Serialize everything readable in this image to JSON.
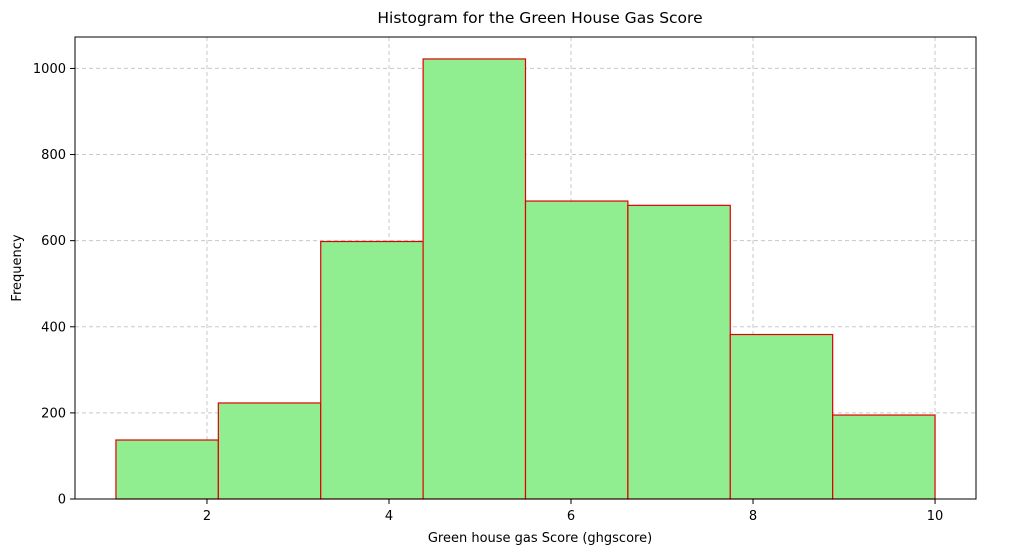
{
  "chart_data": {
    "type": "bar",
    "title": "Histogram for the Green House Gas Score",
    "xlabel": "Green house gas Score (ghgscore)",
    "ylabel": "Frequency",
    "bins": [
      {
        "x0": 1.0,
        "x1": 2.125,
        "value": 137
      },
      {
        "x0": 2.125,
        "x1": 3.25,
        "value": 223
      },
      {
        "x0": 3.25,
        "x1": 4.375,
        "value": 598
      },
      {
        "x0": 4.375,
        "x1": 5.5,
        "value": 1022
      },
      {
        "x0": 5.5,
        "x1": 6.625,
        "value": 692
      },
      {
        "x0": 6.625,
        "x1": 7.75,
        "value": 682
      },
      {
        "x0": 7.75,
        "x1": 8.875,
        "value": 382
      },
      {
        "x0": 8.875,
        "x1": 10.0,
        "value": 195
      }
    ],
    "xlim": [
      0.55,
      10.45
    ],
    "ylim": [
      0,
      1073
    ],
    "xticks": [
      2,
      4,
      6,
      8,
      10
    ],
    "yticks": [
      0,
      200,
      400,
      600,
      800,
      1000
    ],
    "grid": true,
    "colors": {
      "bar_fill": "#90ee90",
      "bar_edge": "#e00000",
      "grid": "#c8c8c8",
      "axis": "#000000"
    }
  }
}
